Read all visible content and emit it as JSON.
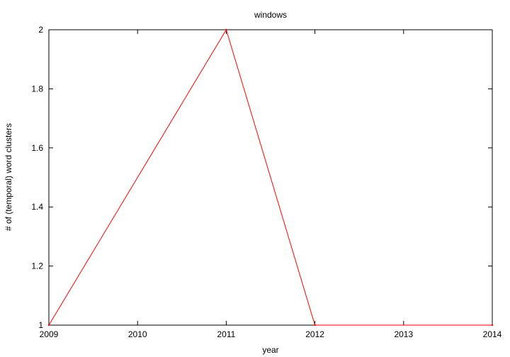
{
  "chart_data": {
    "type": "line",
    "title": "windows",
    "xlabel": "year",
    "ylabel": "# of (temporal) word clusters",
    "xlim": [
      2009,
      2014
    ],
    "ylim": [
      1,
      2
    ],
    "x_ticks": [
      "2009",
      "2010",
      "2011",
      "2012",
      "2013",
      "2014"
    ],
    "y_ticks": [
      "1",
      "1.2",
      "1.4",
      "1.6",
      "1.8",
      "2"
    ],
    "grid": false,
    "legend": "none",
    "series": [
      {
        "color": "#ff0000",
        "x": [
          2009,
          2011,
          2012,
          2014
        ],
        "y": [
          1,
          2,
          1,
          1
        ]
      }
    ]
  }
}
